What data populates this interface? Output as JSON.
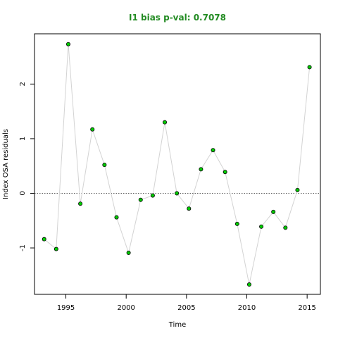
{
  "chart_data": {
    "type": "scatter",
    "title": "I1 bias p-val: 0.7078",
    "title_color": "#228b22",
    "xlabel": "Time",
    "ylabel": "Index OSA residuals",
    "xlim": [
      1992.4,
      2016.1
    ],
    "ylim": [
      -1.85,
      2.92
    ],
    "x_ticks": [
      1995,
      2000,
      2005,
      2010,
      2015
    ],
    "x_tick_labels": [
      "1995",
      "2000",
      "2005",
      "2010",
      "2015"
    ],
    "y_ticks": [
      -1,
      0,
      1,
      2
    ],
    "y_tick_labels": [
      "-1",
      "0",
      "1",
      "2"
    ],
    "grid": false,
    "reference_line": {
      "y": 0,
      "style": "dotted",
      "color": "#555555"
    },
    "line_color": "#d3d3d3",
    "point_fill": "#00cc00",
    "point_stroke": "#000000",
    "series": [
      {
        "x": [
          1993.2,
          1994.2,
          1995.2,
          1996.2,
          1997.2,
          1998.2,
          1999.2,
          2000.2,
          2001.2,
          2002.2,
          2003.2,
          2004.2,
          2005.2,
          2006.2,
          2007.2,
          2008.2,
          2009.2,
          2010.2,
          2011.2,
          2012.2,
          2013.2,
          2014.2,
          2015.2
        ],
        "y": [
          -0.84,
          -1.02,
          2.73,
          -0.19,
          1.17,
          0.52,
          -0.44,
          -1.09,
          -0.12,
          -0.04,
          1.3,
          0.0,
          -0.28,
          0.44,
          0.79,
          0.39,
          -0.56,
          -1.67,
          -0.61,
          -0.34,
          -0.63,
          0.06,
          2.31
        ]
      }
    ]
  }
}
